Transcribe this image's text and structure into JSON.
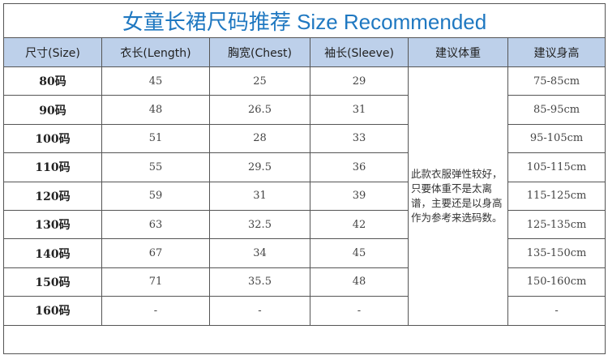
{
  "title": "女童长裙尺码推荐 Size Recommended",
  "headers": [
    "尺寸(Size)",
    "衣长(Length)",
    "胸宽(Chest)",
    "袖长(Sleeve)",
    "建议体重",
    "建议身高"
  ],
  "rows": [
    {
      "size": "80码",
      "length": "45",
      "chest": "25",
      "sleeve": "29",
      "height": "75-85cm"
    },
    {
      "size": "90码",
      "length": "48",
      "chest": "26.5",
      "sleeve": "31",
      "height": "85-95cm"
    },
    {
      "size": "100码",
      "length": "51",
      "chest": "28",
      "sleeve": "33",
      "height": "95-105cm"
    },
    {
      "size": "110码",
      "length": "55",
      "chest": "29.5",
      "sleeve": "36",
      "height": "105-115cm"
    },
    {
      "size": "120码",
      "length": "59",
      "chest": "31",
      "sleeve": "39",
      "height": "115-125cm"
    },
    {
      "size": "130码",
      "length": "63",
      "chest": "32.5",
      "sleeve": "42",
      "height": "125-135cm"
    },
    {
      "size": "140码",
      "length": "67",
      "chest": "34",
      "sleeve": "45",
      "height": "135-150cm"
    },
    {
      "size": "150码",
      "length": "71",
      "chest": "35.5",
      "sleeve": "48",
      "height": "150-160cm"
    },
    {
      "size": "160码",
      "length": "-",
      "chest": "-",
      "sleeve": "-",
      "height": "-"
    }
  ],
  "weight_note": "此款衣服弹性较好，只要体重不是太离谱，主要还是以身高作为参考来选码数。",
  "colors": {
    "title": "#1f78c1",
    "header_bg": "#bdd0ea"
  }
}
